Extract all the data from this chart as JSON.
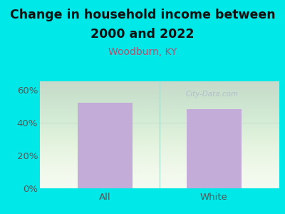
{
  "categories": [
    "All",
    "White"
  ],
  "values": [
    52,
    48
  ],
  "bar_color": "#c4acd8",
  "background_color": "#00e8e8",
  "plot_bg_color": "#f5faf0",
  "title_line1": "Change in household income between",
  "title_line2": "2000 and 2022",
  "subtitle": "Woodburn, KY",
  "subtitle_color": "#b05070",
  "title_color": "#111111",
  "title_fontsize": 12.5,
  "subtitle_fontsize": 10,
  "ylabel_ticks": [
    0,
    20,
    40,
    60
  ],
  "ylim": [
    0,
    65
  ],
  "tick_label_color": "#555555",
  "divider_color": "#aaddcc",
  "watermark": "City-Data.com",
  "watermark_color": "#b0b8c8",
  "tick_fontsize": 9.5
}
